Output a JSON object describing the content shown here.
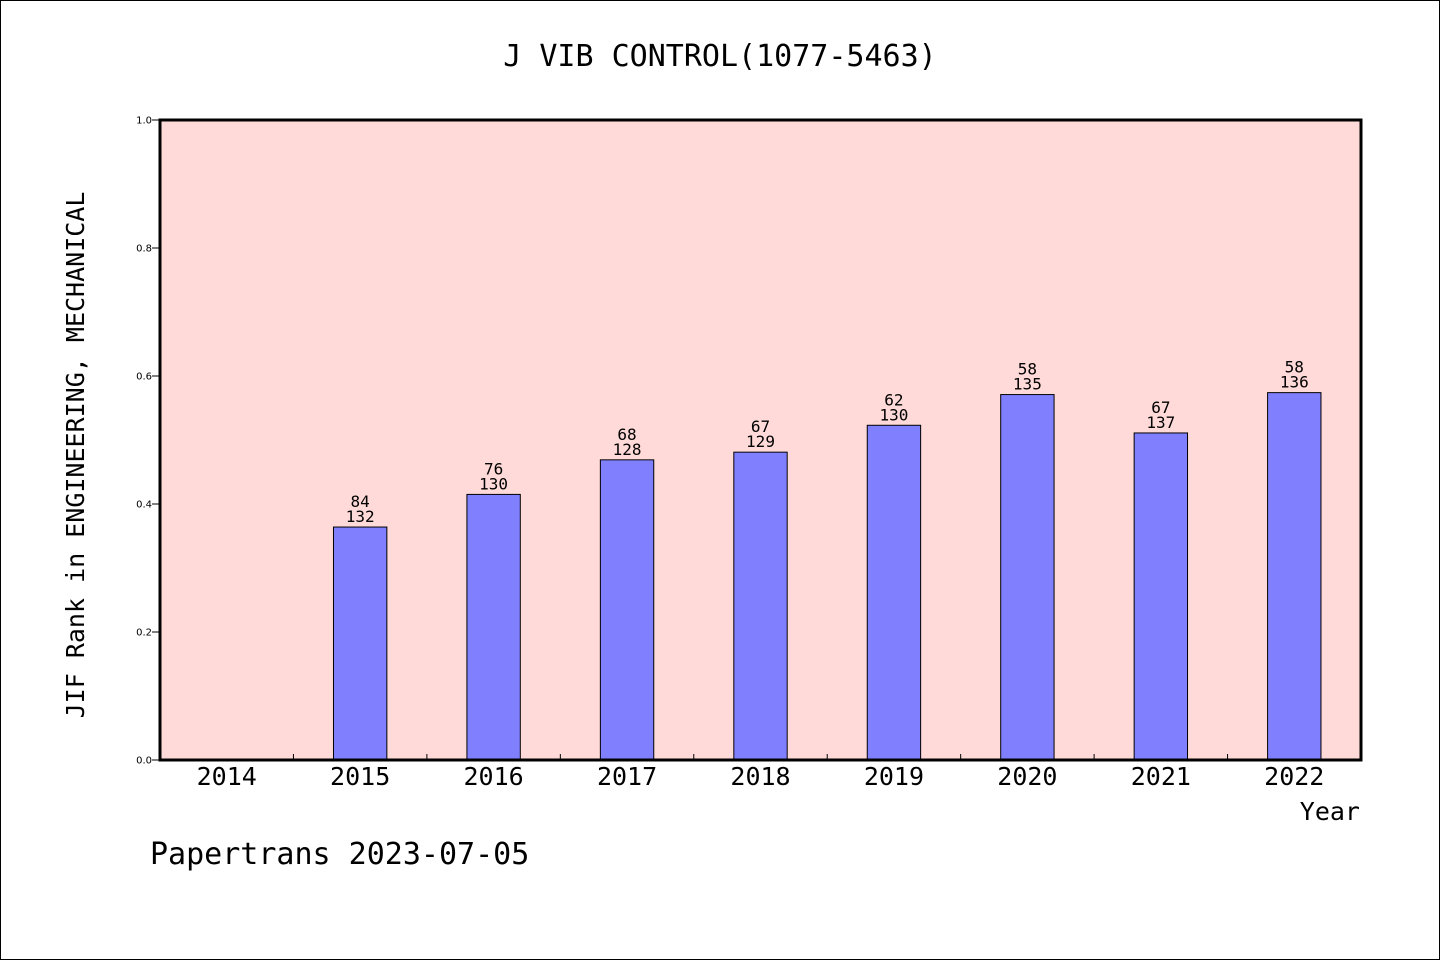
{
  "chart_data": {
    "type": "bar",
    "title": "J VIB CONTROL(1077-5463)",
    "xlabel": "Year",
    "ylabel": "JIF Rank in ENGINEERING, MECHANICAL",
    "ylim": [
      0,
      1.0
    ],
    "yticks": [
      "0.0",
      "0.2",
      "0.4",
      "0.6",
      "0.8",
      "1.0"
    ],
    "categories": [
      "2014",
      "2015",
      "2016",
      "2017",
      "2018",
      "2019",
      "2020",
      "2021",
      "2022"
    ],
    "values": [
      null,
      0.364,
      0.415,
      0.469,
      0.481,
      0.523,
      0.571,
      0.511,
      0.574
    ],
    "rank": [
      null,
      "84",
      "76",
      "68",
      "67",
      "62",
      "58",
      "67",
      "58"
    ],
    "total": [
      null,
      "132",
      "130",
      "128",
      "129",
      "130",
      "135",
      "137",
      "136"
    ],
    "grid": false,
    "legend": "none",
    "colors": {
      "plot_background": "#ffdad8",
      "bar_fill": "#8080ff",
      "bar_stroke": "#000000"
    }
  },
  "footer": {
    "text": "Papertrans 2023-07-05"
  }
}
